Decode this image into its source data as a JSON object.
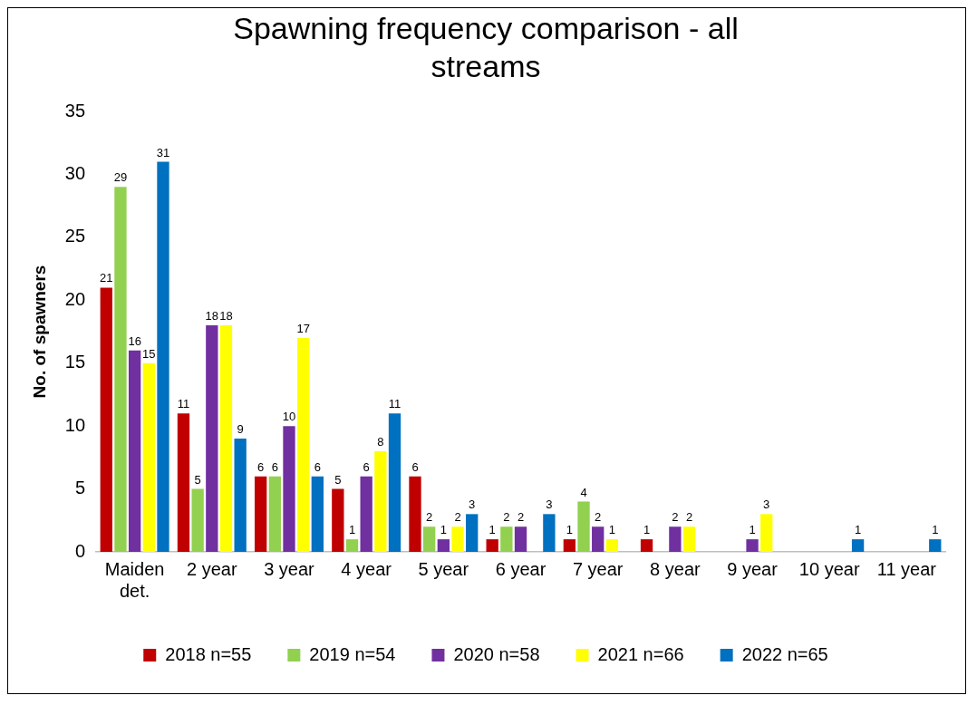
{
  "chart_data": {
    "type": "bar",
    "title": "Spawning frequency comparison - all streams",
    "ylabel": "No. of spawners",
    "categories": [
      "Maiden det.",
      "2 year",
      "3 year",
      "4 year",
      "5 year",
      "6 year",
      "7 year",
      "8 year",
      "9 year",
      "10 year",
      "11 year"
    ],
    "series": [
      {
        "name": "2018 n=55",
        "color": "#c00000",
        "values": [
          21,
          11,
          6,
          5,
          6,
          1,
          1,
          1,
          0,
          0,
          0
        ],
        "value_labels": [
          "21",
          "11",
          "6",
          "5",
          "6",
          "1",
          "1",
          "1",
          null,
          null,
          null
        ]
      },
      {
        "name": "2019 n=54",
        "color": "#92d050",
        "values": [
          29,
          5,
          6,
          1,
          2,
          2,
          4,
          0,
          0,
          0,
          0
        ],
        "value_labels": [
          "29",
          "5",
          "6",
          "1",
          "2",
          "2",
          "4",
          null,
          null,
          null,
          null
        ]
      },
      {
        "name": "2020 n=58",
        "color": "#7030a0",
        "values": [
          16,
          18,
          10,
          6,
          1,
          2,
          2,
          2,
          1,
          0,
          0
        ],
        "value_labels": [
          "16",
          "18",
          "10",
          "6",
          "1",
          "2",
          "2",
          "2",
          "1",
          null,
          null
        ]
      },
      {
        "name": "2021 n=66",
        "color": "#ffff00",
        "values": [
          15,
          18,
          17,
          8,
          2,
          0,
          1,
          2,
          3,
          0,
          0
        ],
        "value_labels": [
          "15",
          "18",
          "17",
          "8",
          "2",
          null,
          "1",
          "2",
          "3",
          null,
          null
        ]
      },
      {
        "name": "2022 n=65",
        "color": "#0070c0",
        "values": [
          31,
          9,
          6,
          11,
          3,
          3,
          0,
          0,
          0,
          1,
          1
        ],
        "value_labels": [
          "31",
          "9",
          "6",
          "11",
          "3",
          "3",
          null,
          null,
          null,
          "1",
          "1"
        ]
      }
    ],
    "ylim": [
      0,
      35
    ],
    "yticks": [
      0,
      5,
      10,
      15,
      20,
      25,
      30,
      35
    ],
    "grid": false,
    "legend": "bottom"
  }
}
